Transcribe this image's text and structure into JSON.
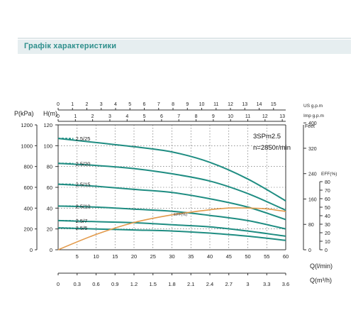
{
  "header": {
    "title": "Графік характеристики"
  },
  "chart_data": {
    "type": "line",
    "model": "3SPm2.5",
    "speed": "n=2850r/min",
    "left_axes": {
      "p_label": "P(kPa)",
      "h_label": "H(m)",
      "p_ticks": [
        0,
        200,
        400,
        600,
        800,
        1000,
        1200
      ],
      "h_ticks": [
        0,
        20,
        40,
        60,
        80,
        100,
        120
      ],
      "h_range": [
        0,
        120
      ]
    },
    "top_axes": {
      "us_label": "US g.p.m",
      "us_ticks": [
        0,
        1,
        2,
        3,
        4,
        5,
        6,
        7,
        8,
        9,
        10,
        11,
        12,
        13,
        14,
        15
      ],
      "imp_label": "Imp g.p.m",
      "imp_ticks": [
        0,
        1,
        2,
        3,
        4,
        5,
        6,
        7,
        8,
        9,
        10,
        11,
        12,
        13
      ]
    },
    "right_axes": {
      "feet_label": "Feet",
      "feet_ticks": [
        0,
        80,
        160,
        240,
        320,
        400
      ],
      "eff_label": "EFF(%)",
      "eff_ticks": [
        0,
        10,
        20,
        30,
        40,
        50,
        60,
        70,
        80
      ]
    },
    "x_axis": {
      "label": "Q(l/min)",
      "ticks": [
        5,
        10,
        15,
        20,
        25,
        30,
        35,
        40,
        45,
        50,
        55,
        60
      ],
      "range": [
        0,
        60
      ]
    },
    "x_axis2": {
      "label": "Q(m³/h)",
      "ticks": [
        "0",
        "0.3",
        "0.6",
        "0.9",
        "1.2",
        "1.5",
        "1.8",
        "2.1",
        "2.4",
        "2.7",
        "3",
        "3.3",
        "3.6"
      ]
    },
    "x": [
      0,
      10,
      20,
      30,
      40,
      50,
      60
    ],
    "series": [
      {
        "name": "2.5/25",
        "values": [
          107,
          103,
          99,
          94,
          84,
          68,
          47
        ]
      },
      {
        "name": "2.5/20",
        "values": [
          83,
          81,
          78,
          73,
          66,
          54,
          38
        ]
      },
      {
        "name": "2.5/15",
        "values": [
          63,
          61,
          58,
          55,
          49,
          41,
          29
        ]
      },
      {
        "name": "2.5/10",
        "values": [
          42,
          41,
          39,
          37,
          33,
          28,
          20
        ]
      },
      {
        "name": "2.5/7",
        "values": [
          28,
          27,
          26,
          24,
          22,
          18,
          13
        ]
      },
      {
        "name": "2.5/5",
        "values": [
          21,
          20,
          19,
          18,
          16,
          13,
          9
        ]
      }
    ],
    "efficiency": {
      "name": "EFF(%)",
      "x": [
        0,
        10,
        20,
        30,
        40,
        45,
        50,
        55,
        60
      ],
      "values": [
        0,
        18,
        32,
        41,
        47,
        49,
        49,
        48,
        45
      ]
    }
  }
}
